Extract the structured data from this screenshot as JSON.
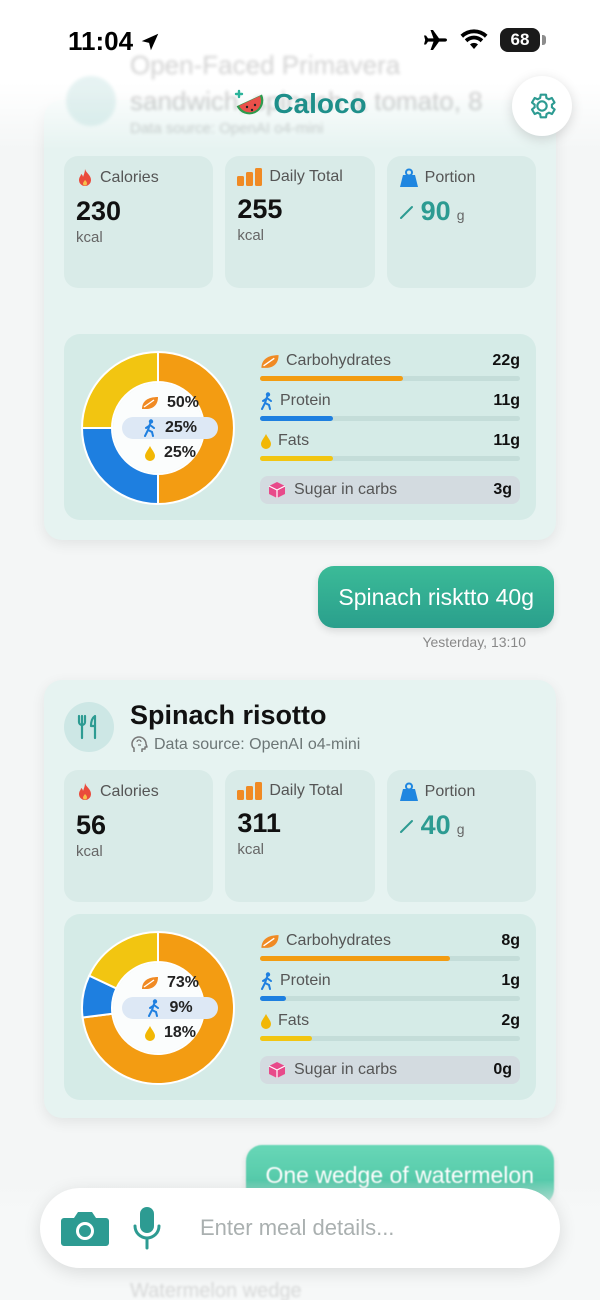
{
  "status_bar": {
    "time": "11:04",
    "battery": "68"
  },
  "header": {
    "app_name": "Caloco",
    "ghost_title_line1": "Open-Faced Primavera",
    "ghost_title_line2": "sandwich, spinach & tomato, 8",
    "ghost_source": "Data source: OpenAI o4-mini"
  },
  "colors": {
    "accent": "#2d9b92",
    "carbs": "#f39c12",
    "protein": "#1e7fe0",
    "fats": "#f2c511",
    "sugar": "#e84a8a"
  },
  "labels": {
    "calories": "Calories",
    "daily_total": "Daily Total",
    "portion": "Portion",
    "carbohydrates": "Carbohydrates",
    "protein": "Protein",
    "fats": "Fats",
    "sugar": "Sugar in carbs",
    "kcal": "kcal",
    "g": "g"
  },
  "card1": {
    "calories": "230",
    "daily_total": "255",
    "portion": "90",
    "macros": {
      "carbs_pct": "50%",
      "protein_pct": "25%",
      "fats_pct": "25%",
      "carbs": "22g",
      "protein": "11g",
      "fats": "11g",
      "sugar": "3g",
      "carbs_bar": 0.55,
      "protein_bar": 0.28,
      "fats_bar": 0.28
    },
    "donut": [
      50,
      25,
      25
    ]
  },
  "message1": {
    "text": "Spinach risktto 40g",
    "timestamp": "Yesterday, 13:10"
  },
  "card2": {
    "food_name": "Spinach risotto",
    "data_source": "Data source: OpenAI o4-mini",
    "calories": "56",
    "daily_total": "311",
    "portion": "40",
    "macros": {
      "carbs_pct": "73%",
      "protein_pct": "9%",
      "fats_pct": "18%",
      "carbs": "8g",
      "protein": "1g",
      "fats": "2g",
      "sugar": "0g",
      "carbs_bar": 0.73,
      "protein_bar": 0.1,
      "fats_bar": 0.2
    },
    "donut": [
      73,
      9,
      18
    ]
  },
  "message2": {
    "text": "One wedge of watermelon"
  },
  "ghost_bottom": "Watermelon wedge",
  "input": {
    "placeholder": "Enter meal details..."
  }
}
